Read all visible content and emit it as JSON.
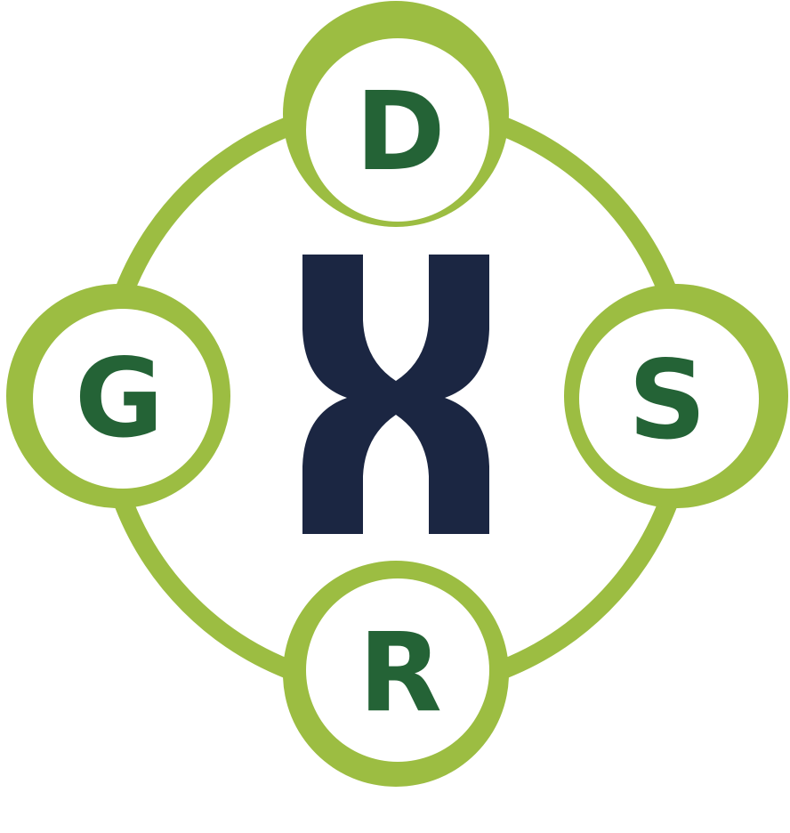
{
  "logo": {
    "center_mark": "X",
    "nodes": {
      "top": "D",
      "left": "G",
      "right": "S",
      "bottom": "R"
    },
    "colors": {
      "ring": "#9cbd42",
      "letters": "#246336",
      "center_mark": "#1b2642",
      "background": "#ffffff"
    }
  }
}
